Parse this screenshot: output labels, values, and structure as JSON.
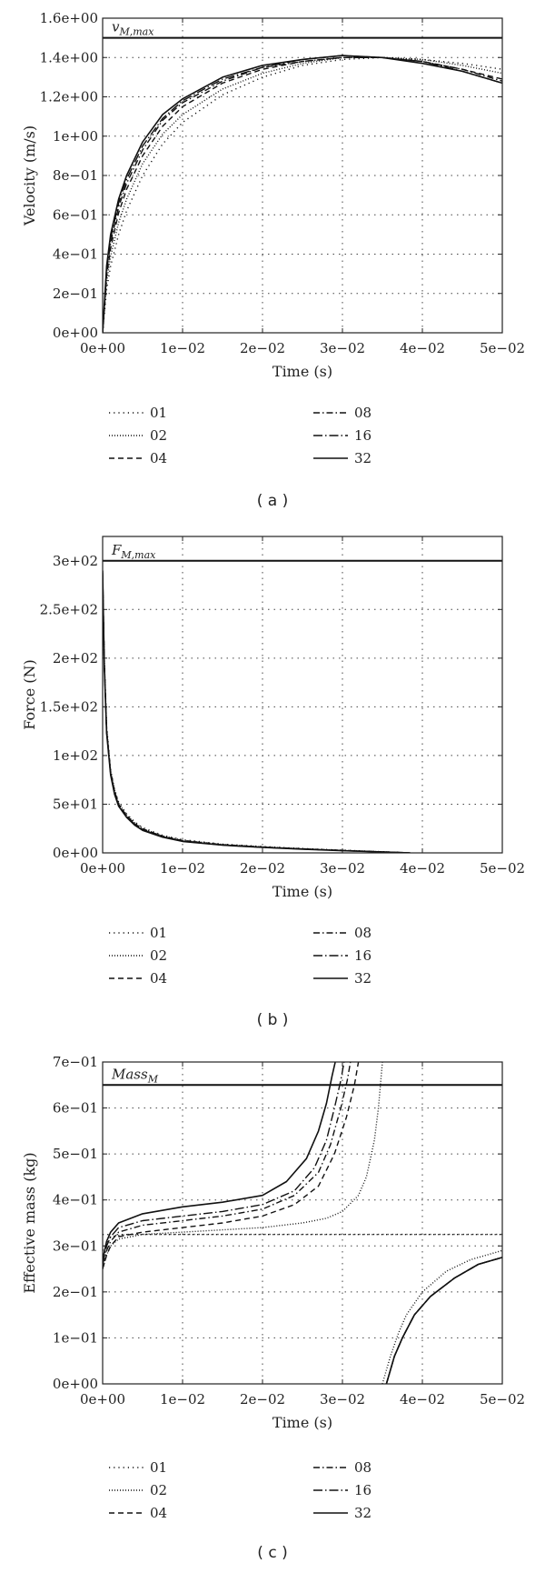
{
  "chart_data": [
    {
      "type": "line",
      "panel": "a",
      "caption": "( a )",
      "xlabel": "Time (s)",
      "ylabel": "Velocity (m/s)",
      "xlim": [
        0,
        0.05
      ],
      "ylim": [
        0,
        1.6
      ],
      "xticks": [
        0,
        0.01,
        0.02,
        0.03,
        0.04,
        0.05
      ],
      "xtick_labels": [
        "0e+00",
        "1e−02",
        "2e−02",
        "3e−02",
        "4e−02",
        "5e−02"
      ],
      "yticks": [
        0,
        0.2,
        0.4,
        0.6,
        0.8,
        1.0,
        1.2,
        1.4,
        1.6
      ],
      "ytick_labels": [
        "0e+00",
        "2e−01",
        "4e−01",
        "6e−01",
        "8e−01",
        "1e+00",
        "1.2e+00",
        "1.4e+00",
        "1.6e+00"
      ],
      "grid": true,
      "reference": {
        "label": "v",
        "label_sub": "M,max",
        "y": 1.5
      },
      "legend_placement": "below",
      "x": [
        0,
        0.0005,
        0.001,
        0.002,
        0.003,
        0.005,
        0.0075,
        0.01,
        0.015,
        0.02,
        0.025,
        0.03,
        0.035,
        0.04,
        0.045,
        0.05
      ],
      "series": [
        {
          "name": "01",
          "style": "dotted-sparse",
          "values": [
            0,
            0.22,
            0.34,
            0.5,
            0.62,
            0.8,
            0.96,
            1.07,
            1.21,
            1.3,
            1.36,
            1.39,
            1.4,
            1.39,
            1.37,
            1.34
          ]
        },
        {
          "name": "02",
          "style": "dotted",
          "values": [
            0,
            0.26,
            0.39,
            0.56,
            0.68,
            0.86,
            1.01,
            1.11,
            1.24,
            1.32,
            1.37,
            1.4,
            1.4,
            1.39,
            1.36,
            1.32
          ]
        },
        {
          "name": "04",
          "style": "dashed",
          "values": [
            0,
            0.29,
            0.43,
            0.61,
            0.73,
            0.9,
            1.05,
            1.15,
            1.27,
            1.34,
            1.38,
            1.4,
            1.4,
            1.38,
            1.34,
            1.29
          ]
        },
        {
          "name": "08",
          "style": "dashdot",
          "values": [
            0,
            0.31,
            0.46,
            0.64,
            0.76,
            0.93,
            1.08,
            1.17,
            1.28,
            1.35,
            1.38,
            1.4,
            1.4,
            1.38,
            1.34,
            1.28
          ]
        },
        {
          "name": "16",
          "style": "dashdot-long",
          "values": [
            0,
            0.33,
            0.48,
            0.66,
            0.78,
            0.95,
            1.09,
            1.18,
            1.29,
            1.35,
            1.39,
            1.41,
            1.4,
            1.38,
            1.33,
            1.27
          ]
        },
        {
          "name": "32",
          "style": "solid",
          "values": [
            0,
            0.34,
            0.5,
            0.68,
            0.8,
            0.97,
            1.11,
            1.19,
            1.3,
            1.36,
            1.39,
            1.41,
            1.4,
            1.37,
            1.33,
            1.27
          ]
        }
      ]
    },
    {
      "type": "line",
      "panel": "b",
      "caption": "( b )",
      "xlabel": "Time (s)",
      "ylabel": "Force (N)",
      "xlim": [
        0,
        0.05
      ],
      "ylim": [
        0,
        325
      ],
      "xticks": [
        0,
        0.01,
        0.02,
        0.03,
        0.04,
        0.05
      ],
      "xtick_labels": [
        "0e+00",
        "1e−02",
        "2e−02",
        "3e−02",
        "4e−02",
        "5e−02"
      ],
      "yticks": [
        0,
        50,
        100,
        150,
        200,
        250,
        300
      ],
      "ytick_labels": [
        "0e+00",
        "5e+01",
        "1e+02",
        "1.5e+02",
        "2e+02",
        "2.5e+02",
        "3e+02"
      ],
      "grid": true,
      "reference": {
        "label": "F",
        "label_sub": "M,max",
        "y": 300
      },
      "legend_placement": "below",
      "x": [
        0,
        0.0002,
        0.0005,
        0.001,
        0.0015,
        0.002,
        0.003,
        0.004,
        0.005,
        0.0075,
        0.01,
        0.015,
        0.02,
        0.025,
        0.03,
        0.035,
        0.0385
      ],
      "series": [
        {
          "name": "01",
          "style": "dotted-sparse",
          "values": [
            280,
            200,
            130,
            85,
            65,
            52,
            40,
            32,
            26,
            18,
            13.5,
            9,
            6.5,
            4.5,
            2.8,
            1.2,
            0
          ]
        },
        {
          "name": "02",
          "style": "dotted",
          "values": [
            282,
            198,
            128,
            84,
            64,
            51,
            39,
            31,
            25,
            17.5,
            13,
            8.7,
            6.2,
            4.3,
            2.6,
            1.1,
            0
          ]
        },
        {
          "name": "04",
          "style": "dashed",
          "values": [
            284,
            196,
            126,
            83,
            63,
            50,
            38,
            30,
            24.5,
            17,
            12.6,
            8.4,
            6,
            4.1,
            2.5,
            1,
            0
          ]
        },
        {
          "name": "08",
          "style": "dashdot",
          "values": [
            286,
            195,
            125,
            82,
            62,
            49,
            37.5,
            29.5,
            24,
            16.7,
            12.3,
            8.2,
            5.8,
            4,
            2.4,
            1,
            0
          ]
        },
        {
          "name": "16",
          "style": "dashdot-long",
          "values": [
            288,
            194,
            124,
            81,
            61,
            48.5,
            37,
            29,
            23.6,
            16.4,
            12,
            8,
            5.7,
            3.9,
            2.3,
            0.9,
            0
          ]
        },
        {
          "name": "32",
          "style": "solid",
          "values": [
            290,
            193,
            123,
            80,
            60,
            48,
            36.5,
            28.6,
            23.2,
            16.2,
            11.8,
            7.9,
            5.6,
            3.8,
            2.2,
            0.9,
            0
          ]
        }
      ]
    },
    {
      "type": "line",
      "panel": "c",
      "caption": "( c )",
      "xlabel": "Time (s)",
      "ylabel": "Effective mass (kg)",
      "xlim": [
        0,
        0.05
      ],
      "ylim": [
        0,
        0.7
      ],
      "xticks": [
        0,
        0.01,
        0.02,
        0.03,
        0.04,
        0.05
      ],
      "xtick_labels": [
        "0e+00",
        "1e−02",
        "2e−02",
        "3e−02",
        "4e−02",
        "5e−02"
      ],
      "yticks": [
        0,
        0.1,
        0.2,
        0.3,
        0.4,
        0.5,
        0.6,
        0.7
      ],
      "ytick_labels": [
        "0e+00",
        "1e−01",
        "2e−01",
        "3e−01",
        "4e−01",
        "5e−01",
        "6e−01",
        "7e−01"
      ],
      "grid": true,
      "reference": {
        "label": "Mass",
        "label_sub": "M",
        "y": 0.65
      },
      "extra_reference": {
        "series": "01",
        "y": 0.325
      },
      "legend_placement": "below",
      "series": [
        {
          "name": "01",
          "style": "dotted-sparse",
          "segments": [
            {
              "x": [
                0,
                0.001,
                0.003,
                0.006,
                0.01,
                0.02,
                0.03,
                0.04,
                0.05
              ],
              "values": [
                0.29,
                0.32,
                0.325,
                0.325,
                0.325,
                0.325,
                0.325,
                0.325,
                0.325
              ]
            }
          ]
        },
        {
          "name": "02",
          "style": "dotted",
          "segments": [
            {
              "x": [
                0,
                0.0005,
                0.001,
                0.002,
                0.005,
                0.01,
                0.015,
                0.02,
                0.025,
                0.028,
                0.03,
                0.032,
                0.033,
                0.034,
                0.0345,
                0.035
              ],
              "values": [
                0.25,
                0.28,
                0.3,
                0.315,
                0.325,
                0.33,
                0.335,
                0.34,
                0.35,
                0.36,
                0.375,
                0.41,
                0.45,
                0.53,
                0.6,
                0.7
              ]
            },
            {
              "x": [
                0.035,
                0.036,
                0.037,
                0.038,
                0.04,
                0.043,
                0.046,
                0.05
              ],
              "values": [
                0,
                0.06,
                0.11,
                0.15,
                0.2,
                0.245,
                0.27,
                0.29
              ]
            }
          ]
        },
        {
          "name": "04",
          "style": "dashed",
          "segments": [
            {
              "x": [
                0,
                0.0005,
                0.001,
                0.002,
                0.005,
                0.01,
                0.015,
                0.02,
                0.024,
                0.027,
                0.029,
                0.0305,
                0.0315,
                0.032
              ],
              "values": [
                0.25,
                0.28,
                0.3,
                0.32,
                0.33,
                0.34,
                0.35,
                0.365,
                0.39,
                0.43,
                0.5,
                0.58,
                0.65,
                0.7
              ]
            },
            {
              "x": [
                0.0355,
                0.0365,
                0.0375,
                0.039,
                0.041,
                0.044,
                0.047,
                0.05
              ],
              "values": [
                0,
                0.06,
                0.1,
                0.15,
                0.19,
                0.23,
                0.26,
                0.275
              ]
            }
          ]
        },
        {
          "name": "08",
          "style": "dashdot",
          "segments": [
            {
              "x": [
                0,
                0.0005,
                0.001,
                0.002,
                0.005,
                0.01,
                0.015,
                0.02,
                0.024,
                0.027,
                0.0285,
                0.0298,
                0.0306,
                0.031
              ],
              "values": [
                0.26,
                0.29,
                0.31,
                0.33,
                0.345,
                0.355,
                0.365,
                0.38,
                0.41,
                0.46,
                0.52,
                0.6,
                0.66,
                0.7
              ]
            },
            {
              "x": [
                0.0355,
                0.0365,
                0.0375,
                0.039,
                0.041,
                0.044,
                0.047,
                0.05
              ],
              "values": [
                0,
                0.06,
                0.1,
                0.15,
                0.19,
                0.23,
                0.26,
                0.275
              ]
            }
          ]
        },
        {
          "name": "16",
          "style": "dashdot-long",
          "segments": [
            {
              "x": [
                0,
                0.0005,
                0.001,
                0.002,
                0.005,
                0.01,
                0.015,
                0.02,
                0.024,
                0.0265,
                0.028,
                0.029,
                0.0298,
                0.0302
              ],
              "values": [
                0.26,
                0.3,
                0.32,
                0.34,
                0.355,
                0.365,
                0.375,
                0.39,
                0.42,
                0.47,
                0.53,
                0.6,
                0.66,
                0.7
              ]
            },
            {
              "x": [
                0.0355,
                0.0365,
                0.0375,
                0.039,
                0.041,
                0.044,
                0.047,
                0.05
              ],
              "values": [
                0,
                0.06,
                0.1,
                0.15,
                0.19,
                0.23,
                0.26,
                0.275
              ]
            }
          ]
        },
        {
          "name": "32",
          "style": "solid",
          "segments": [
            {
              "x": [
                0,
                0.0005,
                0.001,
                0.002,
                0.005,
                0.01,
                0.015,
                0.02,
                0.023,
                0.0255,
                0.027,
                0.028,
                0.0287,
                0.0291
              ],
              "values": [
                0.27,
                0.31,
                0.33,
                0.35,
                0.37,
                0.385,
                0.395,
                0.41,
                0.44,
                0.49,
                0.55,
                0.61,
                0.67,
                0.7
              ]
            },
            {
              "x": [
                0.0355,
                0.0365,
                0.0375,
                0.039,
                0.041,
                0.044,
                0.047,
                0.05
              ],
              "values": [
                0,
                0.06,
                0.1,
                0.15,
                0.19,
                0.23,
                0.26,
                0.275
              ]
            }
          ]
        }
      ]
    }
  ],
  "colors": {
    "line": "#111111",
    "grid": "#444444",
    "background": "#ffffff"
  }
}
